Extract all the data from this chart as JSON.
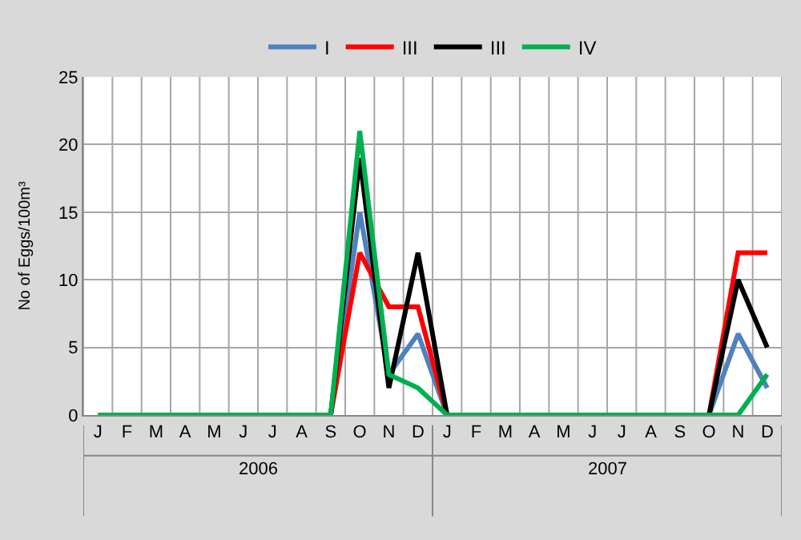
{
  "chart_data": {
    "type": "line",
    "ylabel": "No of Eggs/100m³",
    "categories": [
      "J",
      "F",
      "M",
      "A",
      "M",
      "J",
      "J",
      "A",
      "S",
      "O",
      "N",
      "D",
      "J",
      "F",
      "M",
      "A",
      "M",
      "J",
      "J",
      "A",
      "S",
      "O",
      "N",
      "D"
    ],
    "series": [
      {
        "name": "I",
        "color": "#4f81bd",
        "values": [
          null,
          null,
          null,
          null,
          null,
          null,
          null,
          null,
          0,
          15,
          3,
          6,
          0,
          null,
          null,
          null,
          null,
          null,
          null,
          null,
          null,
          0,
          6,
          2
        ]
      },
      {
        "name": "III",
        "color": "#ff0000",
        "values": [
          null,
          null,
          null,
          null,
          null,
          null,
          null,
          null,
          0,
          12,
          8,
          8,
          0,
          null,
          null,
          null,
          null,
          null,
          null,
          null,
          null,
          0,
          12,
          12
        ]
      },
      {
        "name": "III",
        "color": "#000000",
        "values": [
          null,
          null,
          null,
          null,
          null,
          null,
          null,
          null,
          0,
          19,
          2,
          12,
          0,
          null,
          null,
          null,
          null,
          null,
          null,
          null,
          null,
          0,
          10,
          5
        ]
      },
      {
        "name": "IV",
        "color": "#00b050",
        "values": [
          0,
          0,
          0,
          0,
          0,
          0,
          0,
          0,
          0,
          21,
          3,
          2,
          0,
          0,
          0,
          0,
          0,
          0,
          0,
          0,
          0,
          0,
          0,
          3
        ]
      }
    ],
    "annotations": [
      "2006",
      "2007"
    ],
    "ylim": [
      0,
      25
    ],
    "yticks": [
      0,
      5,
      10,
      15,
      20,
      25
    ],
    "grid": true,
    "legend": "top",
    "marker": "none",
    "line_style": "solid"
  }
}
